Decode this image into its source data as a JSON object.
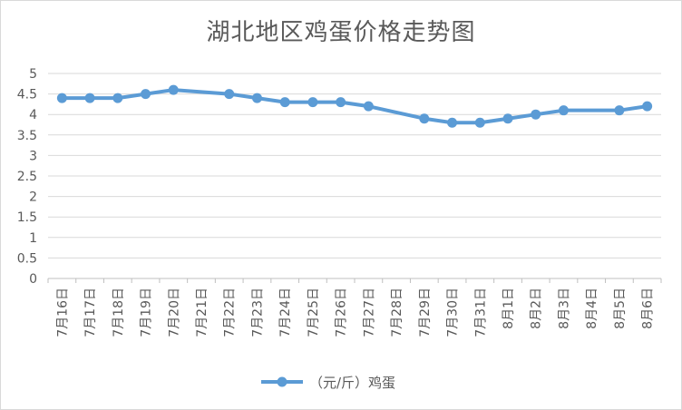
{
  "chart_data": {
    "type": "line",
    "title": "湖北地区鸡蛋价格走势图",
    "xlabel": "",
    "ylabel": "",
    "categories": [
      "7月16日",
      "7月17日",
      "7月18日",
      "7月19日",
      "7月20日",
      "7月21日",
      "7月22日",
      "7月23日",
      "7月24日",
      "7月25日",
      "7月26日",
      "7月27日",
      "7月28日",
      "7月29日",
      "7月30日",
      "7月31日",
      "8月1日",
      "8月2日",
      "8月3日",
      "8月4日",
      "8月5日",
      "8月6日"
    ],
    "series": [
      {
        "name": "（元/斤）鸡蛋",
        "color": "#5b9bd5",
        "values": [
          4.4,
          4.4,
          4.4,
          4.5,
          4.6,
          null,
          4.5,
          4.4,
          4.3,
          4.3,
          4.3,
          4.2,
          null,
          3.9,
          3.8,
          3.8,
          3.9,
          4.0,
          4.1,
          null,
          4.1,
          4.2
        ]
      }
    ],
    "ylim": [
      0,
      5
    ],
    "yticks": [
      "0",
      "0.5",
      "1",
      "1.5",
      "2",
      "2.5",
      "3",
      "3.5",
      "4",
      "4.5",
      "5"
    ],
    "grid": true,
    "legend_position": "bottom",
    "line_connects_gaps": true
  }
}
